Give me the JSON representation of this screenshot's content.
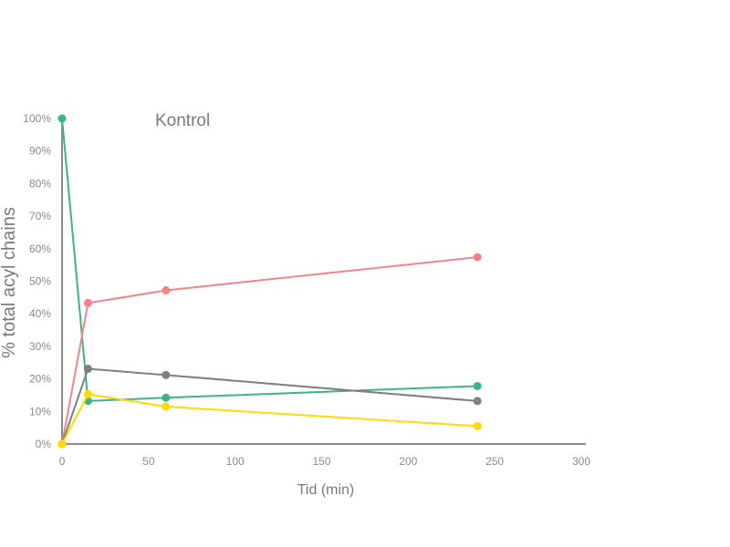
{
  "chart_data": {
    "type": "line",
    "title": "Kontrol",
    "xlabel": "Tid (min)",
    "ylabel": "% total acyl chains",
    "xlim": [
      0,
      300
    ],
    "ylim": [
      0,
      100
    ],
    "xticks": [
      "0",
      "50",
      "100",
      "150",
      "200",
      "250",
      "300"
    ],
    "yticks": [
      "0%",
      "10%",
      "20%",
      "30%",
      "40%",
      "50%",
      "60%",
      "70%",
      "80%",
      "90%",
      "100%"
    ],
    "grid": false,
    "legend": "none",
    "x": [
      0,
      15,
      60,
      240
    ],
    "series": [
      {
        "color": "#3cb489",
        "values": [
          100,
          13.2,
          14.2,
          17.8
        ]
      },
      {
        "color": "#f0848a",
        "values": [
          0,
          43.3,
          47.2,
          57.4
        ]
      },
      {
        "color": "#7f7f7f",
        "values": [
          0,
          23.1,
          21.2,
          13.2
        ]
      },
      {
        "color": "#ffd900",
        "values": [
          0,
          15.3,
          11.5,
          5.5
        ]
      }
    ]
  }
}
